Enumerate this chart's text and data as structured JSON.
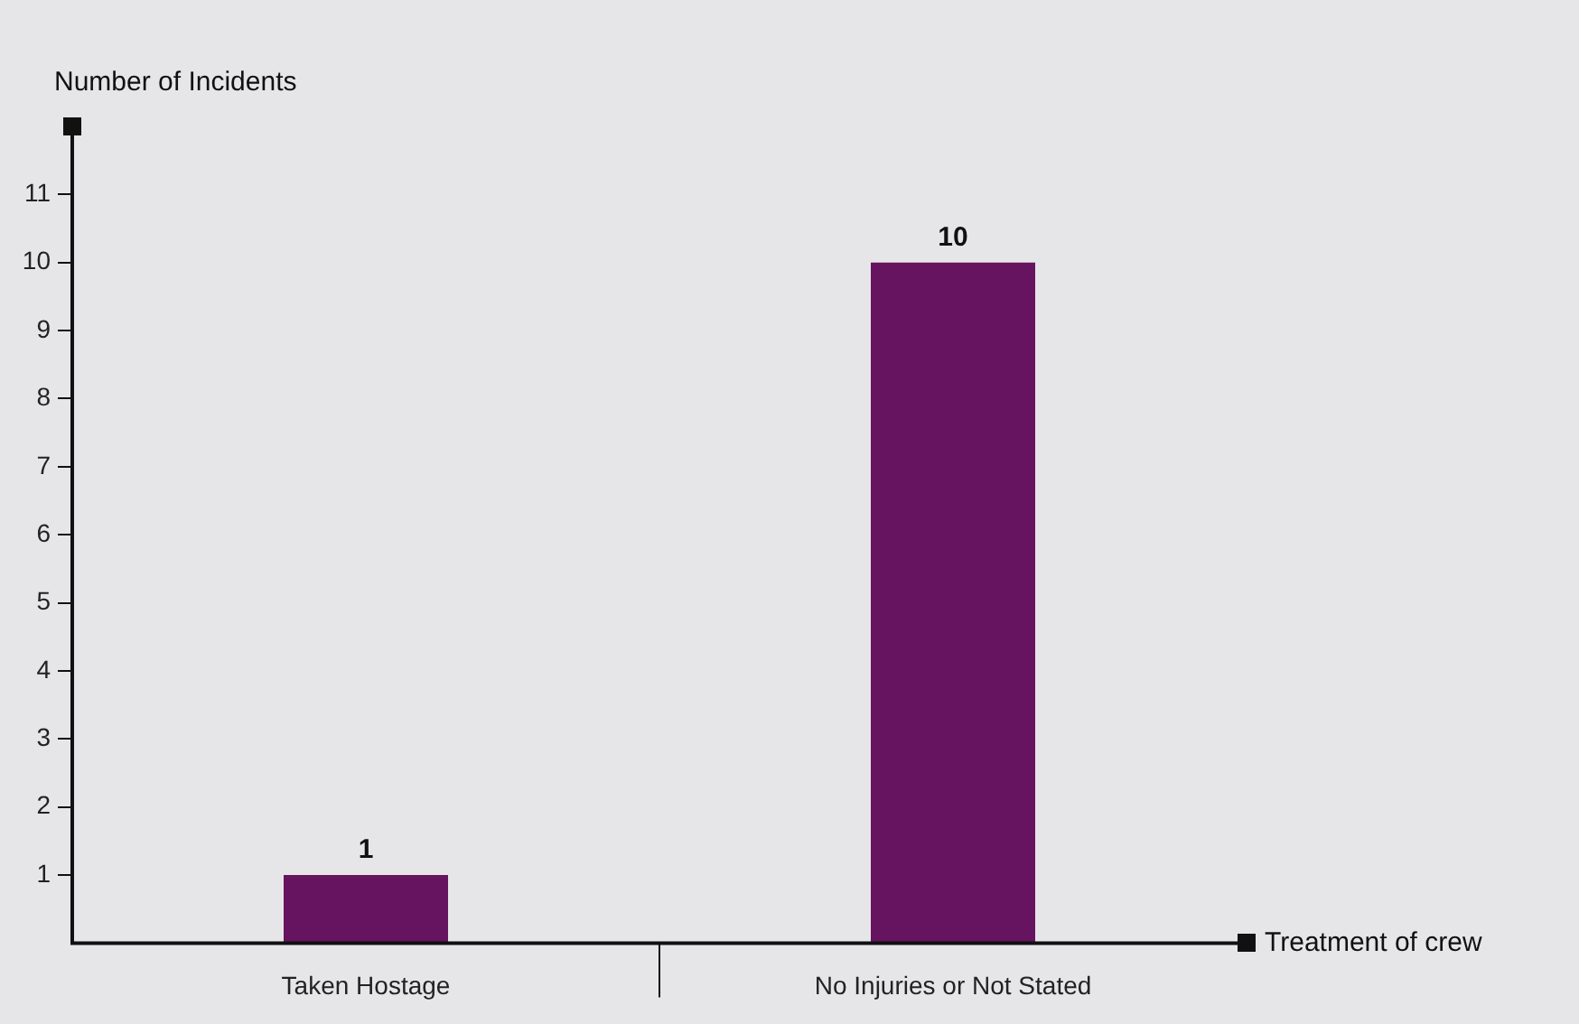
{
  "chart_data": {
    "type": "bar",
    "xlabel": "Treatment of crew",
    "ylabel": "Number of Incidents",
    "categories": [
      "Taken Hostage",
      "No Injuries or Not Stated"
    ],
    "values": [
      1,
      10
    ],
    "color": "#66145f",
    "ylim": [
      0,
      12
    ],
    "yticks": [
      1,
      2,
      3,
      4,
      5,
      6,
      7,
      8,
      9,
      10,
      11
    ],
    "data_labels": true
  }
}
